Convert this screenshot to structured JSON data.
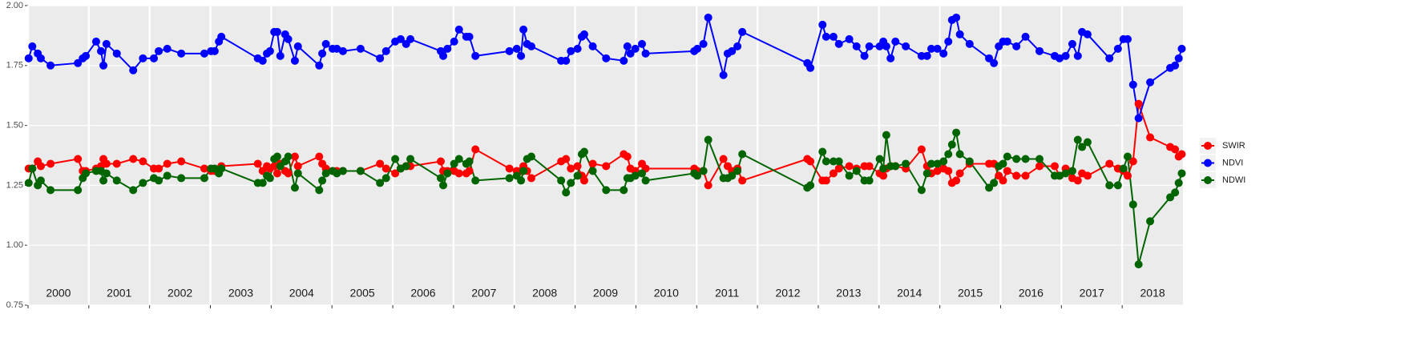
{
  "chart_data": {
    "type": "line",
    "x": [
      2000.01,
      2000.07,
      2000.16,
      2000.21,
      2000.37,
      2000.82,
      2000.9,
      2000.95,
      2001.12,
      2001.2,
      2001.24,
      2001.29,
      2001.46,
      2001.73,
      2001.89,
      2002.07,
      2002.15,
      2002.29,
      2002.52,
      2002.9,
      2003.01,
      2003.07,
      2003.14,
      2003.18,
      2003.78,
      2003.86,
      2003.93,
      2003.98,
      2004.05,
      2004.1,
      2004.15,
      2004.23,
      2004.28,
      2004.39,
      2004.44,
      2004.79,
      2004.84,
      2004.9,
      2005.01,
      2005.08,
      2005.18,
      2005.47,
      2005.79,
      2005.89,
      2006.04,
      2006.13,
      2006.22,
      2006.29,
      2006.79,
      2006.83,
      2006.9,
      2007.01,
      2007.09,
      2007.21,
      2007.26,
      2007.36,
      2007.92,
      2008.04,
      2008.11,
      2008.15,
      2008.21,
      2008.28,
      2008.77,
      2008.85,
      2008.93,
      2009.04,
      2009.11,
      2009.15,
      2009.29,
      2009.51,
      2009.8,
      2009.86,
      2009.91,
      2009.99,
      2010.1,
      2010.16,
      2010.96,
      2011.01,
      2011.11,
      2011.19,
      2011.44,
      2011.51,
      2011.58,
      2011.67,
      2011.75,
      2012.82,
      2012.87,
      2013.07,
      2013.13,
      2013.25,
      2013.34,
      2013.51,
      2013.63,
      2013.76,
      2013.84,
      2014.01,
      2014.07,
      2014.12,
      2014.19,
      2014.27,
      2014.44,
      2014.7,
      2014.79,
      2014.86,
      2014.96,
      2015.06,
      2015.14,
      2015.2,
      2015.27,
      2015.33,
      2015.49,
      2015.81,
      2015.89,
      2015.97,
      2016.04,
      2016.11,
      2016.26,
      2016.41,
      2016.64,
      2016.89,
      2016.97,
      2017.07,
      2017.18,
      2017.27,
      2017.34,
      2017.43,
      2017.79,
      2017.93,
      2018.02,
      2018.09,
      2018.18,
      2018.27,
      2018.46,
      2018.79,
      2018.87,
      2018.93,
      2018.98
    ],
    "series": [
      {
        "name": "SWIR",
        "color": "#ff0000",
        "values": [
          1.32,
          1.32,
          1.35,
          1.33,
          1.34,
          1.36,
          1.31,
          1.31,
          1.32,
          1.33,
          1.36,
          1.34,
          1.34,
          1.36,
          1.35,
          1.32,
          1.32,
          1.34,
          1.35,
          1.32,
          1.31,
          1.31,
          1.31,
          1.33,
          1.34,
          1.31,
          1.33,
          1.32,
          1.33,
          1.3,
          1.34,
          1.31,
          1.3,
          1.37,
          1.33,
          1.37,
          1.34,
          1.32,
          1.31,
          1.31,
          1.31,
          1.31,
          1.34,
          1.32,
          1.3,
          1.32,
          1.33,
          1.33,
          1.35,
          1.31,
          1.31,
          1.31,
          1.3,
          1.3,
          1.31,
          1.4,
          1.32,
          1.31,
          1.31,
          1.33,
          1.31,
          1.28,
          1.35,
          1.36,
          1.32,
          1.33,
          1.29,
          1.27,
          1.34,
          1.33,
          1.38,
          1.37,
          1.32,
          1.31,
          1.34,
          1.32,
          1.32,
          1.31,
          1.31,
          1.25,
          1.36,
          1.33,
          1.31,
          1.32,
          1.27,
          1.36,
          1.35,
          1.27,
          1.27,
          1.3,
          1.32,
          1.33,
          1.32,
          1.33,
          1.33,
          1.3,
          1.29,
          1.32,
          1.33,
          1.33,
          1.32,
          1.4,
          1.33,
          1.3,
          1.31,
          1.32,
          1.31,
          1.26,
          1.27,
          1.3,
          1.34,
          1.34,
          1.34,
          1.29,
          1.27,
          1.31,
          1.29,
          1.29,
          1.33,
          1.33,
          1.29,
          1.32,
          1.28,
          1.27,
          1.3,
          1.29,
          1.34,
          1.32,
          1.31,
          1.29,
          1.35,
          1.59,
          1.45,
          1.41,
          1.4,
          1.37,
          1.38
        ]
      },
      {
        "name": "NDVI",
        "color": "#0000ff",
        "values": [
          1.78,
          1.83,
          1.8,
          1.78,
          1.75,
          1.76,
          1.78,
          1.79,
          1.85,
          1.81,
          1.75,
          1.84,
          1.8,
          1.73,
          1.78,
          1.78,
          1.81,
          1.82,
          1.8,
          1.8,
          1.81,
          1.81,
          1.85,
          1.87,
          1.78,
          1.77,
          1.8,
          1.81,
          1.89,
          1.89,
          1.79,
          1.88,
          1.86,
          1.77,
          1.83,
          1.75,
          1.8,
          1.84,
          1.82,
          1.82,
          1.81,
          1.82,
          1.78,
          1.81,
          1.85,
          1.86,
          1.84,
          1.86,
          1.81,
          1.79,
          1.82,
          1.85,
          1.9,
          1.87,
          1.87,
          1.79,
          1.81,
          1.82,
          1.79,
          1.9,
          1.84,
          1.83,
          1.77,
          1.77,
          1.81,
          1.82,
          1.87,
          1.88,
          1.83,
          1.78,
          1.77,
          1.83,
          1.8,
          1.82,
          1.84,
          1.8,
          1.81,
          1.82,
          1.84,
          1.95,
          1.71,
          1.8,
          1.81,
          1.83,
          1.89,
          1.76,
          1.74,
          1.92,
          1.87,
          1.87,
          1.84,
          1.86,
          1.83,
          1.79,
          1.83,
          1.83,
          1.85,
          1.83,
          1.78,
          1.85,
          1.83,
          1.79,
          1.79,
          1.82,
          1.82,
          1.8,
          1.85,
          1.94,
          1.95,
          1.88,
          1.84,
          1.78,
          1.76,
          1.83,
          1.85,
          1.85,
          1.83,
          1.87,
          1.81,
          1.79,
          1.78,
          1.79,
          1.84,
          1.79,
          1.89,
          1.88,
          1.78,
          1.82,
          1.86,
          1.86,
          1.67,
          1.53,
          1.68,
          1.74,
          1.75,
          1.78,
          1.82
        ]
      },
      {
        "name": "NDWI",
        "color": "#006400",
        "values": [
          1.26,
          1.32,
          1.25,
          1.27,
          1.23,
          1.23,
          1.28,
          1.3,
          1.31,
          1.31,
          1.27,
          1.3,
          1.27,
          1.23,
          1.26,
          1.28,
          1.27,
          1.29,
          1.28,
          1.28,
          1.32,
          1.32,
          1.3,
          1.32,
          1.26,
          1.26,
          1.29,
          1.28,
          1.36,
          1.37,
          1.33,
          1.35,
          1.37,
          1.24,
          1.3,
          1.23,
          1.27,
          1.3,
          1.31,
          1.3,
          1.31,
          1.31,
          1.26,
          1.28,
          1.36,
          1.32,
          1.33,
          1.36,
          1.28,
          1.25,
          1.3,
          1.34,
          1.36,
          1.34,
          1.35,
          1.27,
          1.28,
          1.29,
          1.27,
          1.31,
          1.36,
          1.37,
          1.27,
          1.22,
          1.26,
          1.29,
          1.38,
          1.39,
          1.31,
          1.23,
          1.23,
          1.28,
          1.28,
          1.29,
          1.3,
          1.27,
          1.3,
          1.29,
          1.31,
          1.44,
          1.28,
          1.28,
          1.29,
          1.31,
          1.38,
          1.24,
          1.25,
          1.39,
          1.35,
          1.35,
          1.35,
          1.29,
          1.31,
          1.27,
          1.27,
          1.36,
          1.32,
          1.46,
          1.33,
          1.33,
          1.34,
          1.23,
          1.3,
          1.34,
          1.34,
          1.35,
          1.38,
          1.42,
          1.47,
          1.38,
          1.35,
          1.24,
          1.26,
          1.33,
          1.34,
          1.37,
          1.36,
          1.36,
          1.36,
          1.29,
          1.29,
          1.3,
          1.31,
          1.44,
          1.41,
          1.43,
          1.25,
          1.25,
          1.32,
          1.37,
          1.17,
          0.92,
          1.1,
          1.2,
          1.22,
          1.26,
          1.3
        ]
      }
    ],
    "xlim": [
      2000,
      2019
    ],
    "xticks": [
      {
        "value": 2000,
        "label": "2000"
      },
      {
        "value": 2001,
        "label": "2001"
      },
      {
        "value": 2002,
        "label": "2002"
      },
      {
        "value": 2003,
        "label": "2003"
      },
      {
        "value": 2004,
        "label": "2004"
      },
      {
        "value": 2005,
        "label": "2005"
      },
      {
        "value": 2006,
        "label": "2006"
      },
      {
        "value": 2007,
        "label": "2007"
      },
      {
        "value": 2008,
        "label": "2008"
      },
      {
        "value": 2009,
        "label": "2009"
      },
      {
        "value": 2010,
        "label": "2010"
      },
      {
        "value": 2011,
        "label": "2011"
      },
      {
        "value": 2012,
        "label": "2012"
      },
      {
        "value": 2013,
        "label": "2013"
      },
      {
        "value": 2014,
        "label": "2014"
      },
      {
        "value": 2015,
        "label": "2015"
      },
      {
        "value": 2016,
        "label": "2016"
      },
      {
        "value": 2017,
        "label": "2017"
      },
      {
        "value": 2018,
        "label": "2018"
      }
    ],
    "ylim": [
      0.75,
      2.0
    ],
    "yticks": [
      0.75,
      {
        "value": 1.0,
        "label": "1.00"
      },
      1.25,
      {
        "value": 1.5,
        "label": "1.50"
      },
      1.75,
      {
        "value": 2.0,
        "label": "2.00"
      }
    ],
    "grid": true,
    "legend": "right"
  }
}
